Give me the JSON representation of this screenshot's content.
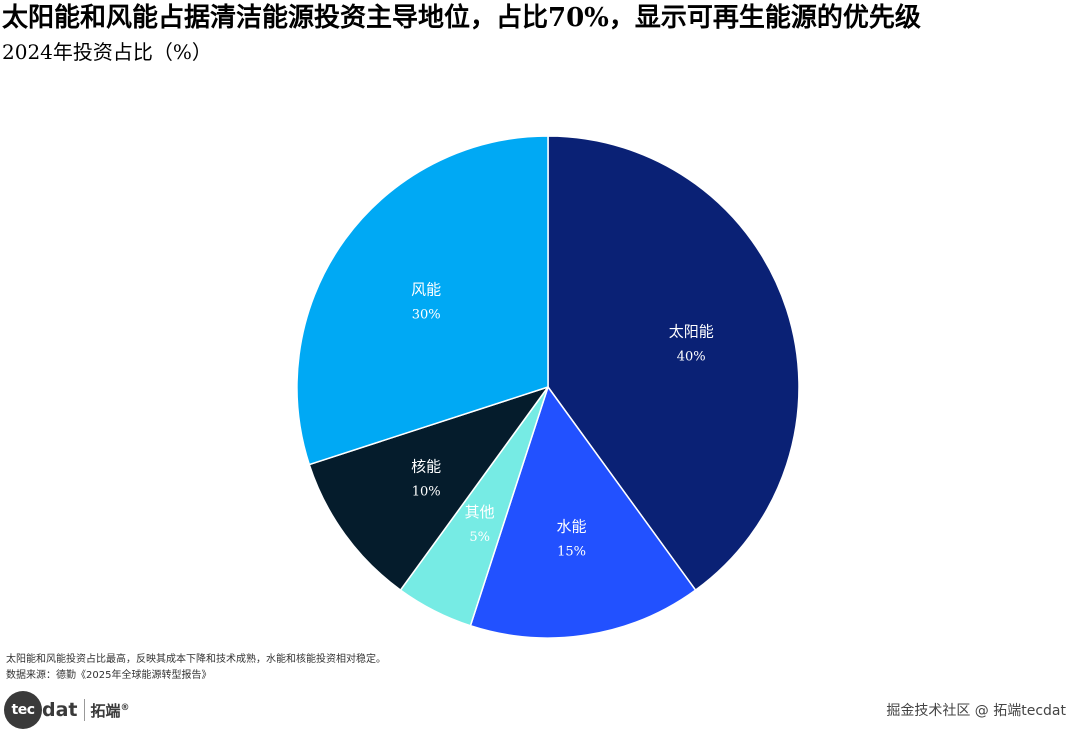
{
  "chart_data": {
    "type": "pie",
    "title": "太阳能和风能占据清洁能源投资主导地位，占比70%，显示可再生能源的优先级",
    "subtitle": "2024年投资占比（%）",
    "start_angle_deg": 0,
    "direction": "clockwise",
    "slices": [
      {
        "label": "太阳能",
        "value": 40,
        "value_label": "40%",
        "color": "#0a2175"
      },
      {
        "label": "水能",
        "value": 15,
        "value_label": "15%",
        "color": "#2251ff"
      },
      {
        "label": "其他",
        "value": 5,
        "value_label": "5%",
        "color": "#76ebe4"
      },
      {
        "label": "核能",
        "value": 10,
        "value_label": "10%",
        "color": "#051c2c"
      },
      {
        "label": "风能",
        "value": 30,
        "value_label": "30%",
        "color": "#00a9f4"
      }
    ]
  },
  "footnote": {
    "line1": "太阳能和风能投资占比最高，反映其成本下降和技术成熟，水能和核能投资相对稳定。",
    "line2": "数据来源：德勤《2025年全球能源转型报告》"
  },
  "logo": {
    "badge": "tec",
    "rest": "dat",
    "cn": "拓端",
    "mark": "®"
  },
  "watermark": "掘金技术社区 @ 拓端tecdat"
}
